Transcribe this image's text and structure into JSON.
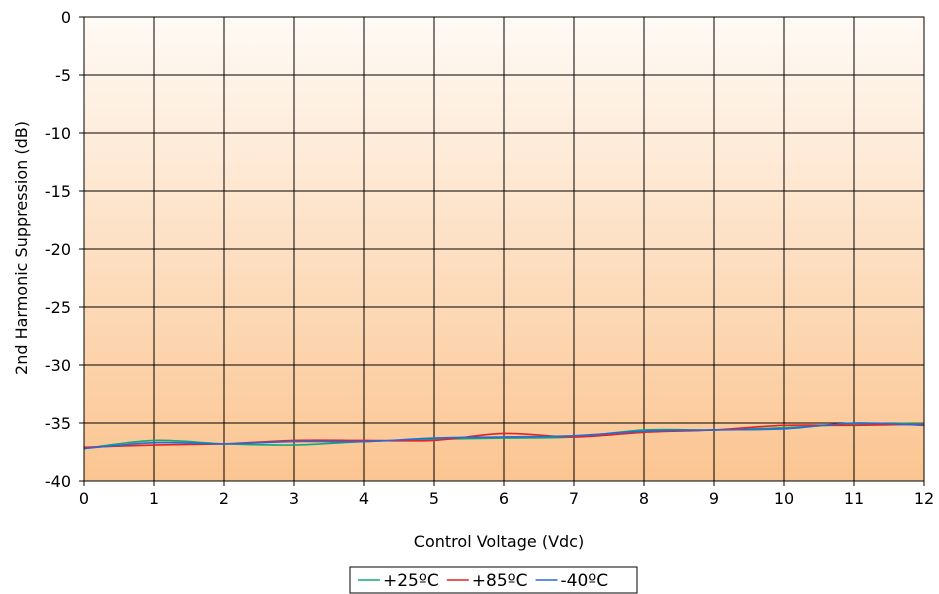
{
  "chart_data": {
    "type": "line",
    "title": "",
    "xlabel": "Control Voltage (Vdc)",
    "ylabel": "2nd Harmonic Suppression (dB)",
    "xlim": [
      0,
      12
    ],
    "ylim": [
      -40,
      0
    ],
    "x_ticks": [
      "0",
      "1",
      "2",
      "3",
      "4",
      "5",
      "6",
      "7",
      "8",
      "9",
      "10",
      "11",
      "12"
    ],
    "y_ticks": [
      "0",
      "-5",
      "-10",
      "-15",
      "-20",
      "-25",
      "-30",
      "-35",
      "-40"
    ],
    "x_tick_values": [
      0,
      1,
      2,
      3,
      4,
      5,
      6,
      7,
      8,
      9,
      10,
      11,
      12
    ],
    "y_tick_values": [
      0,
      -5,
      -10,
      -15,
      -20,
      -25,
      -30,
      -35,
      -40
    ],
    "grid": true,
    "legend_position": "bottom-center",
    "background_gradient": [
      "#fffaf5",
      "#fbc591"
    ],
    "x": [
      0,
      1,
      2,
      3,
      4,
      5,
      6,
      7,
      8,
      9,
      10,
      11,
      12
    ],
    "series": [
      {
        "name": "+25ºC",
        "color": "#16a57a",
        "values": [
          -37.2,
          -36.5,
          -36.8,
          -36.9,
          -36.6,
          -36.4,
          -36.3,
          -36.2,
          -35.6,
          -35.6,
          -35.4,
          -35.1,
          -35.0
        ]
      },
      {
        "name": "+85ºC",
        "color": "#e0242a",
        "values": [
          -37.1,
          -36.9,
          -36.8,
          -36.5,
          -36.5,
          -36.5,
          -35.9,
          -36.2,
          -35.8,
          -35.6,
          -35.2,
          -35.2,
          -35.1
        ]
      },
      {
        "name": "-40ºC",
        "color": "#2a6ad4",
        "values": [
          -37.2,
          -36.7,
          -36.8,
          -36.6,
          -36.6,
          -36.3,
          -36.2,
          -36.1,
          -35.7,
          -35.6,
          -35.5,
          -35.0,
          -35.2
        ]
      }
    ]
  }
}
